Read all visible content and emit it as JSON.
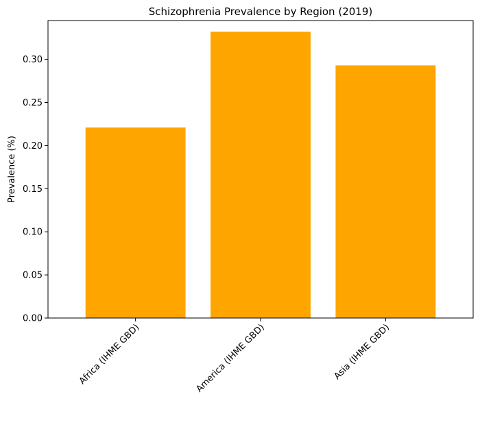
{
  "chart_data": {
    "type": "bar",
    "title": "Schizophrenia Prevalence by Region (2019)",
    "xlabel": "",
    "ylabel": "Prevalence (%)",
    "categories": [
      "Africa (IHME GBD)",
      "America (IHME GBD)",
      "Asia (IHME GBD)"
    ],
    "values": [
      0.221,
      0.332,
      0.293
    ],
    "ylim": [
      0,
      0.345
    ],
    "yticks": [
      "0.00",
      "0.05",
      "0.10",
      "0.15",
      "0.20",
      "0.25",
      "0.30"
    ],
    "ytick_values": [
      0,
      0.05,
      0.1,
      0.15,
      0.2,
      0.25,
      0.3
    ],
    "bar_color": "#FFA500",
    "grid": false,
    "xtick_rotation_deg": 45
  }
}
